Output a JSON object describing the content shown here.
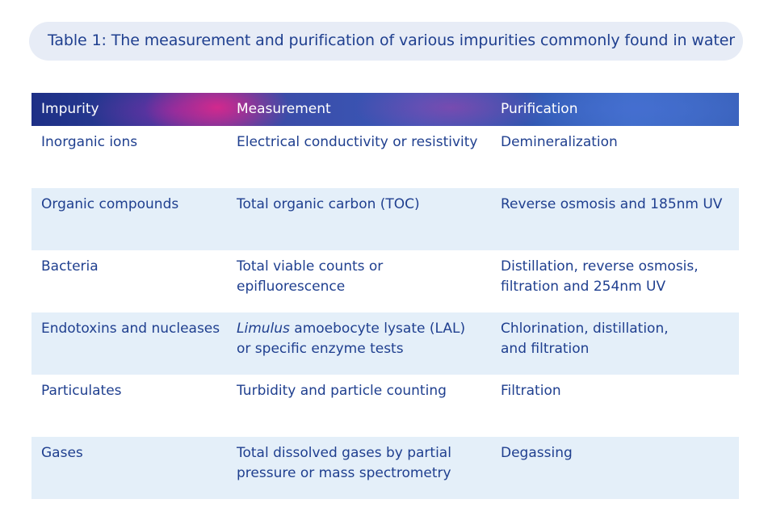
{
  "caption": "Table 1: The measurement and purification of various impurities commonly found in water",
  "table": {
    "headers": [
      "Impurity",
      "Measurement",
      "Purification"
    ],
    "rows": [
      {
        "impurity": "Inorganic ions",
        "measurement": "Electrical conductivity or resistivity",
        "purification": "Demineralization"
      },
      {
        "impurity": "Organic compounds",
        "measurement": "Total organic carbon (TOC)",
        "purification": "Reverse osmosis and 185nm UV"
      },
      {
        "impurity": "Bacteria",
        "measurement_l1": "Total viable counts or",
        "measurement_l2": "epifluorescence",
        "purification_l1": "Distillation, reverse osmosis,",
        "purification_l2": "filtration and 254nm UV"
      },
      {
        "impurity": "Endotoxins and nucleases",
        "measurement_italic": "Limulus",
        "measurement_l1_rest": " amoebocyte lysate (LAL)",
        "measurement_l2": "or specific enzyme tests",
        "purification_l1": "Chlorination, distillation,",
        "purification_l2": "and filtration"
      },
      {
        "impurity": "Particulates",
        "measurement": "Turbidity and particle counting",
        "purification": "Filtration"
      },
      {
        "impurity": "Gases",
        "measurement_l1": "Total dissolved gases by partial",
        "measurement_l2": "pressure or mass spectrometry",
        "purification": "Degassing"
      }
    ]
  },
  "colors": {
    "text": "#1f3f8f",
    "caption_bg": "#e7ecf6",
    "row_shade": "#e4eff9",
    "header_text": "#ffffff"
  }
}
